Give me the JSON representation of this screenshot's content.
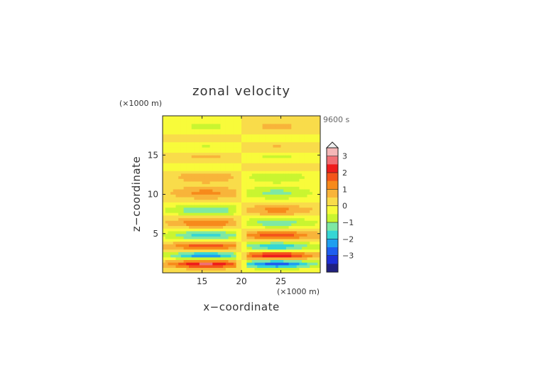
{
  "chart_data": {
    "type": "heatmap",
    "title": "zonal velocity",
    "xlabel": "x−coordinate",
    "ylabel": "z−coordinate",
    "x_unit": "(×1000 m)",
    "y_unit": "(×1000 m)",
    "time_label": "9600 s",
    "xlim": [
      10,
      30
    ],
    "ylim": [
      0,
      20
    ],
    "x_ticks": [
      "15",
      "20",
      "25"
    ],
    "y_ticks": [
      "5",
      "10",
      "15"
    ],
    "colorbar": {
      "ticks": [
        "3",
        "2",
        "1",
        "0",
        "−1",
        "−2",
        "−3"
      ],
      "levels": [
        3.5,
        3.0,
        2.5,
        2.0,
        1.5,
        1.0,
        0.5,
        0.0,
        -0.5,
        -1.0,
        -1.5,
        -2.0,
        -2.5,
        -3.0,
        -3.5
      ],
      "colors": [
        "#f4b7b7",
        "#f06f74",
        "#ee1c1c",
        "#f4541a",
        "#f78a1b",
        "#f8b43a",
        "#f9dc4a",
        "#f8fb3a",
        "#c9f530",
        "#7ee8a4",
        "#35d6d5",
        "#1e9ff0",
        "#1d5ef0",
        "#1c2fd8",
        "#202080"
      ],
      "extend": "max"
    },
    "field_description_bands": [
      {
        "z": 1.2,
        "left": 2.4,
        "right": -2.6
      },
      {
        "z": 2.2,
        "left": -2.2,
        "right": 2.3
      },
      {
        "z": 3.4,
        "left": 1.7,
        "right": -1.8
      },
      {
        "z": 4.8,
        "left": -1.6,
        "right": 1.7
      },
      {
        "z": 6.4,
        "left": 1.3,
        "right": -1.2
      },
      {
        "z": 8.0,
        "left": -1.3,
        "right": 1.0
      },
      {
        "z": 10.2,
        "left": 1.0,
        "right": -1.0
      },
      {
        "z": 12.4,
        "left": 0.9,
        "right": -0.9
      },
      {
        "z": 13.6,
        "left": -0.8,
        "right": 0.8
      },
      {
        "z": 14.8,
        "left": 0.9,
        "right": -0.9
      },
      {
        "z": 16.0,
        "left": -0.9,
        "right": 0.9
      },
      {
        "z": 17.2,
        "left": 0.8,
        "right": -0.8
      },
      {
        "z": 18.4,
        "left": -0.7,
        "right": 0.7
      }
    ]
  }
}
